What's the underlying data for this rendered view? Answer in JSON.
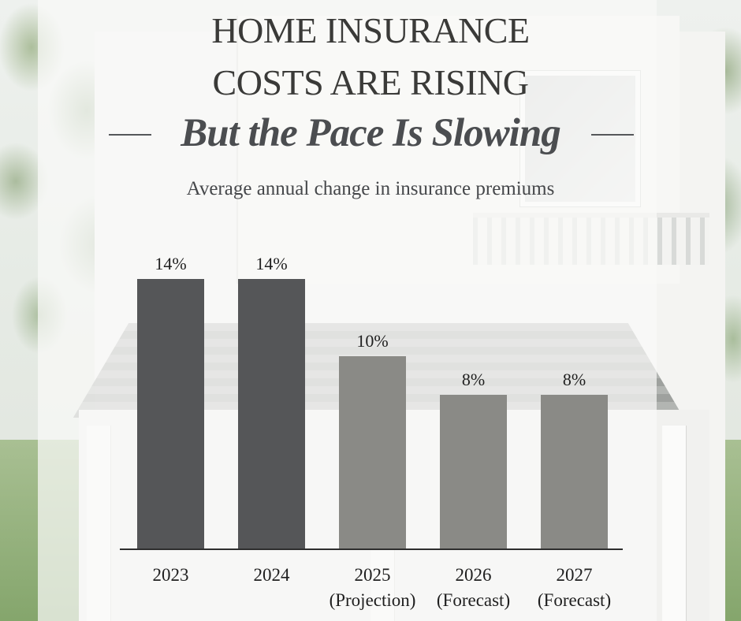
{
  "heading": {
    "line1": "HOME INSURANCE",
    "line2": "COSTS ARE RISING",
    "subtitle": "But the Pace Is Slowing",
    "caption": "Average annual change in insurance premiums"
  },
  "colors": {
    "actual": "#555658",
    "projected": "#8a8a86",
    "axis": "#2e2e2e",
    "title": "#3a3a38"
  },
  "chart_data": {
    "type": "bar",
    "title": "Average annual change in insurance premiums",
    "categories": [
      "2023",
      "2024",
      "2025",
      "2026",
      "2027"
    ],
    "category_notes": [
      "",
      "",
      "(Projection)",
      "(Forecast)",
      "(Forecast)"
    ],
    "values": [
      14,
      14,
      10,
      8,
      8
    ],
    "value_labels": [
      "14%",
      "14%",
      "10%",
      "8%",
      "8%"
    ],
    "bar_style": [
      "actual",
      "actual",
      "projected",
      "projected",
      "projected"
    ],
    "ylim": [
      0,
      14
    ],
    "grid": false,
    "legend": "none"
  }
}
